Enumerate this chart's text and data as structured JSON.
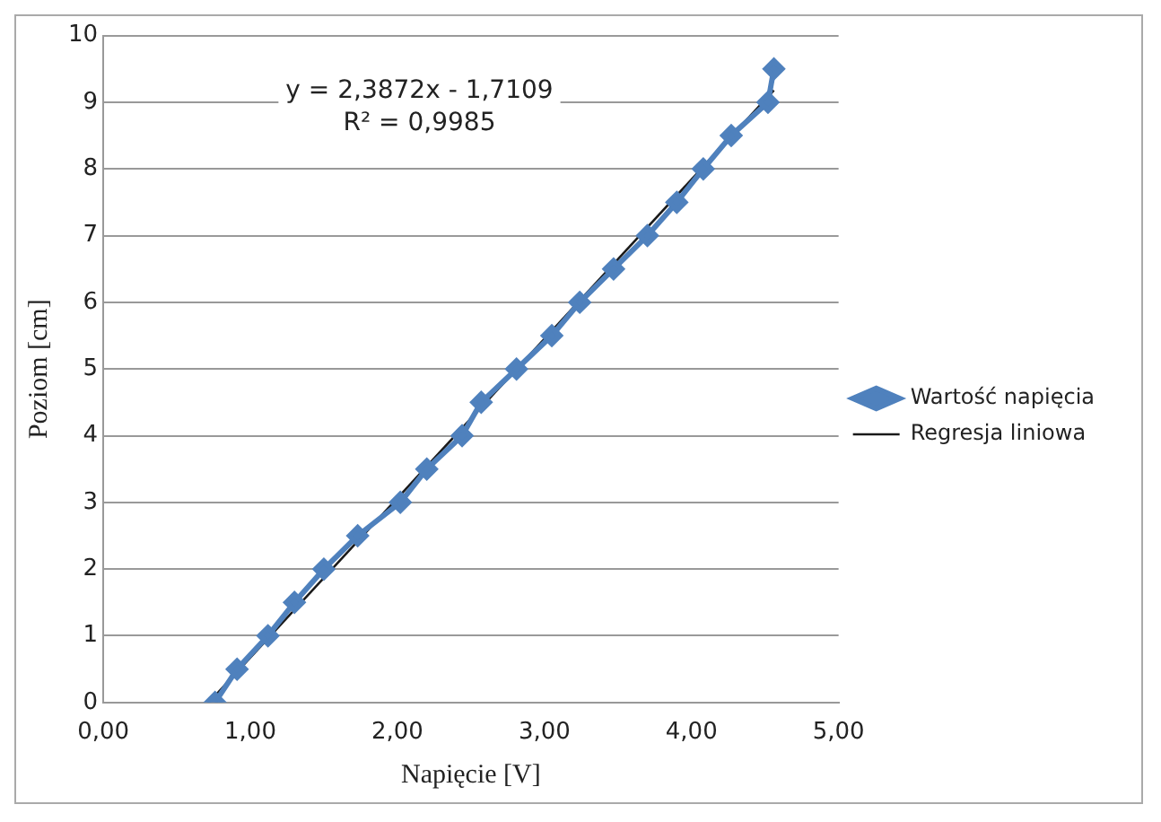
{
  "chart_data": {
    "type": "line",
    "xlabel": "Napięcie [V]",
    "ylabel": "Poziom [cm]",
    "annotations": [
      "y = 2,3872x - 1,7109",
      "R² = 0,9985"
    ],
    "series": [
      {
        "name": "Wartość napięcia",
        "color": "#4f81bd",
        "x": [
          0.76,
          0.91,
          1.12,
          1.3,
          1.5,
          1.73,
          2.02,
          2.2,
          2.44,
          2.57,
          2.81,
          3.05,
          3.24,
          3.47,
          3.7,
          3.9,
          4.08,
          4.27,
          4.52,
          4.56
        ],
        "values": [
          0,
          0.5,
          1,
          1.5,
          2,
          2.5,
          3,
          3.5,
          4,
          4.5,
          5,
          5.5,
          6,
          6.5,
          7,
          7.5,
          8,
          8.5,
          9,
          9.5
        ],
        "marker": "diamond"
      },
      {
        "name": "Regresja liniowa",
        "color": "#1a1a1a",
        "type": "line",
        "x": [
          0.76,
          4.56
        ],
        "values": [
          0.1,
          9.18
        ],
        "marker": "none"
      }
    ],
    "xlim": [
      0,
      5
    ],
    "xticks": [
      {
        "value": 0,
        "label": "0,00"
      },
      {
        "value": 1,
        "label": "1,00"
      },
      {
        "value": 2,
        "label": "2,00"
      },
      {
        "value": 3,
        "label": "3,00"
      },
      {
        "value": 4,
        "label": "4,00"
      },
      {
        "value": 5,
        "label": "5,00"
      }
    ],
    "ylim": [
      0,
      10
    ],
    "yticks": [
      0,
      1,
      2,
      3,
      4,
      5,
      6,
      7,
      8,
      9,
      10
    ],
    "grid": "y",
    "legend": "right"
  }
}
